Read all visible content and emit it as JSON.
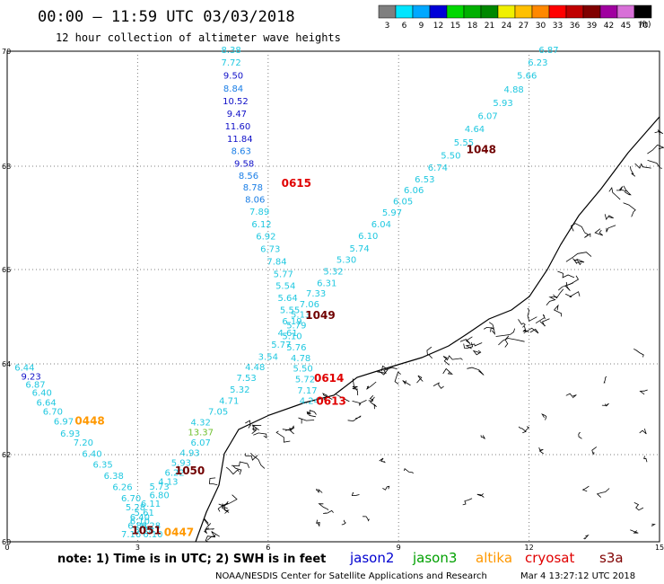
{
  "header": {
    "title": "00:00 — 11:59 UTC 03/03/2018",
    "subtitle": "12 hour collection of altimeter wave heights"
  },
  "colorbar": {
    "unit": "(ft)",
    "bins": [
      {
        "label": "3",
        "color": "#7f7f7f"
      },
      {
        "label": "6",
        "color": "#00e5ff"
      },
      {
        "label": "9",
        "color": "#00a8ff"
      },
      {
        "label": "12",
        "color": "#0000d8"
      },
      {
        "label": "15",
        "color": "#00d800"
      },
      {
        "label": "18",
        "color": "#00b000"
      },
      {
        "label": "21",
        "color": "#008800"
      },
      {
        "label": "24",
        "color": "#f0f000"
      },
      {
        "label": "27",
        "color": "#ffc000"
      },
      {
        "label": "30",
        "color": "#ff8800"
      },
      {
        "label": "33",
        "color": "#ff0000"
      },
      {
        "label": "36",
        "color": "#c00000"
      },
      {
        "label": "39",
        "color": "#800000"
      },
      {
        "label": "42",
        "color": "#a000a0"
      },
      {
        "label": "45",
        "color": "#d870d8"
      },
      {
        "label": "70",
        "color": "#000000"
      }
    ]
  },
  "axes": {
    "lat_labels": [
      "70",
      "68",
      "66",
      "64",
      "62",
      "60"
    ],
    "lon_labels": [
      "0",
      "3",
      "6",
      "9",
      "12",
      "15"
    ]
  },
  "colors": {
    "light": "#20c8e0",
    "medium": "#1a7ee6",
    "dark": "#1010c8",
    "green": "#70c030",
    "time_red": "#e00000",
    "time_dark": "#700000",
    "time_orange": "#ff9800",
    "coast": "#000000",
    "grid": "#7f7f7f"
  },
  "tracks": [
    {
      "name": "pass-a",
      "points": [
        {
          "lon": 5.15,
          "lat": 69.97,
          "v": "8.38",
          "c": "light"
        },
        {
          "lon": 5.15,
          "lat": 69.75,
          "v": "7.72",
          "c": "light"
        },
        {
          "lon": 5.2,
          "lat": 69.52,
          "v": "9.50",
          "c": "dark"
        },
        {
          "lon": 5.2,
          "lat": 69.3,
          "v": "8.84",
          "c": "medium"
        },
        {
          "lon": 5.25,
          "lat": 69.08,
          "v": "10.52",
          "c": "dark"
        },
        {
          "lon": 5.28,
          "lat": 68.86,
          "v": "9.47",
          "c": "dark"
        },
        {
          "lon": 5.3,
          "lat": 68.64,
          "v": "11.60",
          "c": "dark"
        },
        {
          "lon": 5.35,
          "lat": 68.42,
          "v": "11.84",
          "c": "dark"
        },
        {
          "lon": 5.38,
          "lat": 68.21,
          "v": "8.63",
          "c": "medium"
        },
        {
          "lon": 5.45,
          "lat": 67.99,
          "v": "9.58",
          "c": "dark"
        },
        {
          "lon": 5.55,
          "lat": 67.76,
          "v": "8.56",
          "c": "medium"
        },
        {
          "lon": 5.65,
          "lat": 67.53,
          "v": "8.78",
          "c": "medium"
        },
        {
          "lon": 5.7,
          "lat": 67.3,
          "v": "8.06",
          "c": "medium"
        },
        {
          "lon": 5.8,
          "lat": 67.06,
          "v": "7.89",
          "c": "light"
        },
        {
          "lon": 5.85,
          "lat": 66.82,
          "v": "6.12",
          "c": "light"
        },
        {
          "lon": 5.95,
          "lat": 66.58,
          "v": "6.92",
          "c": "light"
        },
        {
          "lon": 6.05,
          "lat": 66.34,
          "v": "6.73",
          "c": "light"
        },
        {
          "lon": 6.2,
          "lat": 66.1,
          "v": "7.84",
          "c": "light"
        },
        {
          "lon": 6.35,
          "lat": 65.84,
          "v": "5.77",
          "c": "light"
        },
        {
          "lon": 6.4,
          "lat": 65.59,
          "v": "5.54",
          "c": "light"
        },
        {
          "lon": 6.45,
          "lat": 65.33,
          "v": "5.64",
          "c": "light"
        },
        {
          "lon": 6.5,
          "lat": 65.08,
          "v": "5.55",
          "c": "light"
        },
        {
          "lon": 6.55,
          "lat": 64.84,
          "v": "6.19",
          "c": "light"
        },
        {
          "lon": 6.45,
          "lat": 64.59,
          "v": "4.61",
          "c": "light"
        },
        {
          "lon": 6.3,
          "lat": 64.34,
          "v": "5.77",
          "c": "light"
        },
        {
          "lon": 6.0,
          "lat": 64.09,
          "v": "3.54",
          "c": "light"
        },
        {
          "lon": 5.7,
          "lat": 63.86,
          "v": "4.48",
          "c": "light"
        },
        {
          "lon": 5.5,
          "lat": 63.62,
          "v": "7.53",
          "c": "light"
        },
        {
          "lon": 5.35,
          "lat": 63.37,
          "v": "5.32",
          "c": "light"
        },
        {
          "lon": 5.1,
          "lat": 63.12,
          "v": "4.71",
          "c": "light"
        },
        {
          "lon": 4.85,
          "lat": 62.88,
          "v": "7.05",
          "c": "light"
        },
        {
          "lon": 4.45,
          "lat": 62.64,
          "v": "4.32",
          "c": "light"
        },
        {
          "lon": 4.45,
          "lat": 62.43,
          "v": "13.37",
          "c": "green"
        },
        {
          "lon": 4.45,
          "lat": 62.2,
          "v": "6.07",
          "c": "light"
        },
        {
          "lon": 4.2,
          "lat": 61.97,
          "v": "4.93",
          "c": "light"
        },
        {
          "lon": 4.0,
          "lat": 61.74,
          "v": "5.93",
          "c": "light"
        },
        {
          "lon": 3.85,
          "lat": 61.52,
          "v": "6.22",
          "c": "light"
        },
        {
          "lon": 3.7,
          "lat": 61.31,
          "v": "4.13",
          "c": "light"
        },
        {
          "lon": 3.5,
          "lat": 61.2,
          "v": "5.73",
          "c": "light"
        },
        {
          "lon": 3.5,
          "lat": 61.0,
          "v": "6.80",
          "c": "light"
        },
        {
          "lon": 3.3,
          "lat": 60.8,
          "v": "6.11",
          "c": "light"
        },
        {
          "lon": 3.15,
          "lat": 60.6,
          "v": "5.61",
          "c": "light"
        },
        {
          "lon": 3.05,
          "lat": 60.4,
          "v": "6.10",
          "c": "light"
        },
        {
          "lon": 3.15,
          "lat": 60.2,
          "v": "5.28",
          "c": "light"
        }
      ]
    },
    {
      "name": "pass-b",
      "points": [
        {
          "lon": 12.45,
          "lat": 69.97,
          "v": "6.87",
          "c": "light"
        },
        {
          "lon": 12.2,
          "lat": 69.75,
          "v": "6.23",
          "c": "light"
        },
        {
          "lon": 11.95,
          "lat": 69.52,
          "v": "5.66",
          "c": "light"
        },
        {
          "lon": 11.65,
          "lat": 69.28,
          "v": "4.88",
          "c": "light"
        },
        {
          "lon": 11.4,
          "lat": 69.05,
          "v": "5.93",
          "c": "light"
        },
        {
          "lon": 11.05,
          "lat": 68.82,
          "v": "6.07",
          "c": "light"
        },
        {
          "lon": 10.75,
          "lat": 68.59,
          "v": "4.64",
          "c": "light"
        },
        {
          "lon": 10.5,
          "lat": 68.36,
          "v": "5.55",
          "c": "light"
        },
        {
          "lon": 10.2,
          "lat": 68.13,
          "v": "5.50",
          "c": "light"
        },
        {
          "lon": 9.9,
          "lat": 67.91,
          "v": "6.74",
          "c": "light"
        },
        {
          "lon": 9.6,
          "lat": 67.69,
          "v": "6.53",
          "c": "light"
        },
        {
          "lon": 9.35,
          "lat": 67.48,
          "v": "6.06",
          "c": "light"
        },
        {
          "lon": 9.1,
          "lat": 67.26,
          "v": "6.05",
          "c": "light"
        },
        {
          "lon": 8.85,
          "lat": 67.04,
          "v": "5.97",
          "c": "light"
        },
        {
          "lon": 8.6,
          "lat": 66.82,
          "v": "6.04",
          "c": "light"
        },
        {
          "lon": 8.3,
          "lat": 66.59,
          "v": "6.10",
          "c": "light"
        },
        {
          "lon": 8.1,
          "lat": 66.35,
          "v": "5.74",
          "c": "light"
        },
        {
          "lon": 7.8,
          "lat": 66.13,
          "v": "5.30",
          "c": "light"
        },
        {
          "lon": 7.5,
          "lat": 65.9,
          "v": "5.32",
          "c": "light"
        },
        {
          "lon": 7.35,
          "lat": 65.65,
          "v": "6.31",
          "c": "light"
        },
        {
          "lon": 7.1,
          "lat": 65.43,
          "v": "7.33",
          "c": "light"
        },
        {
          "lon": 6.95,
          "lat": 65.2,
          "v": "7.06",
          "c": "light"
        },
        {
          "lon": 6.75,
          "lat": 64.98,
          "v": "5.13",
          "c": "light"
        },
        {
          "lon": 6.65,
          "lat": 64.75,
          "v": "5.79",
          "c": "light"
        },
        {
          "lon": 6.55,
          "lat": 64.52,
          "v": "5.10",
          "c": "light"
        },
        {
          "lon": 6.65,
          "lat": 64.29,
          "v": "5.76",
          "c": "light"
        },
        {
          "lon": 6.75,
          "lat": 64.06,
          "v": "4.78",
          "c": "light"
        },
        {
          "lon": 6.8,
          "lat": 63.83,
          "v": "5.50",
          "c": "light"
        },
        {
          "lon": 6.85,
          "lat": 63.59,
          "v": "5.72",
          "c": "light"
        },
        {
          "lon": 6.9,
          "lat": 63.35,
          "v": "7.17",
          "c": "light"
        },
        {
          "lon": 6.95,
          "lat": 63.12,
          "v": "4.24",
          "c": "light"
        }
      ]
    },
    {
      "name": "pass-c",
      "points": [
        {
          "lon": 0.4,
          "lat": 63.85,
          "v": "6.44",
          "c": "light"
        },
        {
          "lon": 0.55,
          "lat": 63.65,
          "v": "9.23",
          "c": "dark"
        },
        {
          "lon": 0.65,
          "lat": 63.48,
          "v": "6.87",
          "c": "light"
        },
        {
          "lon": 0.8,
          "lat": 63.3,
          "v": "6.40",
          "c": "light"
        },
        {
          "lon": 0.9,
          "lat": 63.08,
          "v": "6.64",
          "c": "light"
        },
        {
          "lon": 1.05,
          "lat": 62.88,
          "v": "6.70",
          "c": "light"
        },
        {
          "lon": 1.3,
          "lat": 62.66,
          "v": "6.97",
          "c": "light"
        },
        {
          "lon": 1.45,
          "lat": 62.4,
          "v": "6.93",
          "c": "light"
        },
        {
          "lon": 1.75,
          "lat": 62.2,
          "v": "7.20",
          "c": "light"
        },
        {
          "lon": 1.95,
          "lat": 61.95,
          "v": "6.40",
          "c": "light"
        },
        {
          "lon": 2.2,
          "lat": 61.7,
          "v": "6.35",
          "c": "light"
        },
        {
          "lon": 2.45,
          "lat": 61.44,
          "v": "6.38",
          "c": "light"
        },
        {
          "lon": 2.65,
          "lat": 61.19,
          "v": "6.26",
          "c": "light"
        },
        {
          "lon": 2.85,
          "lat": 60.93,
          "v": "6.70",
          "c": "light"
        },
        {
          "lon": 2.95,
          "lat": 60.72,
          "v": "5.28",
          "c": "light"
        },
        {
          "lon": 3.05,
          "lat": 60.5,
          "v": "6.40",
          "c": "light"
        },
        {
          "lon": 3.0,
          "lat": 60.3,
          "v": "6.84",
          "c": "light"
        },
        {
          "lon": 2.85,
          "lat": 60.1,
          "v": "7.16",
          "c": "light"
        },
        {
          "lon": 3.3,
          "lat": 60.3,
          "v": "6.28",
          "c": "light"
        },
        {
          "lon": 3.35,
          "lat": 60.1,
          "v": "6.10",
          "c": "light"
        }
      ]
    }
  ],
  "time_labels": [
    {
      "text": "0615",
      "lon": 6.65,
      "lat": 67.6,
      "c": "time_red"
    },
    {
      "text": "1048",
      "lon": 10.9,
      "lat": 68.23,
      "c": "time_dark"
    },
    {
      "text": "1049",
      "lon": 7.2,
      "lat": 64.95,
      "c": "time_dark"
    },
    {
      "text": "0614",
      "lon": 7.4,
      "lat": 63.6,
      "c": "time_red"
    },
    {
      "text": "0613",
      "lon": 7.45,
      "lat": 63.1,
      "c": "time_red"
    },
    {
      "text": "0448",
      "lon": 1.9,
      "lat": 62.66,
      "c": "time_orange"
    },
    {
      "text": "1050",
      "lon": 4.2,
      "lat": 61.55,
      "c": "time_dark"
    },
    {
      "text": "1051",
      "lon": 3.2,
      "lat": 60.18,
      "c": "time_dark"
    },
    {
      "text": "0447",
      "lon": 3.95,
      "lat": 60.13,
      "c": "time_orange"
    }
  ],
  "footer": {
    "note": "note:  1) Time is in UTC;  2) SWH is in feet",
    "satellites": [
      {
        "name": "jason2",
        "color": "#0000d0"
      },
      {
        "name": "jason3",
        "color": "#00a000"
      },
      {
        "name": "altika",
        "color": "#ff9800"
      },
      {
        "name": "cryosat",
        "color": "#e00000"
      },
      {
        "name": "s3a",
        "color": "#800000"
      }
    ],
    "credit": "NOAA/NESDIS Center for Satellite Applications and Research",
    "timestamp": "Mar  4 13:27:12 UTC 2018"
  }
}
